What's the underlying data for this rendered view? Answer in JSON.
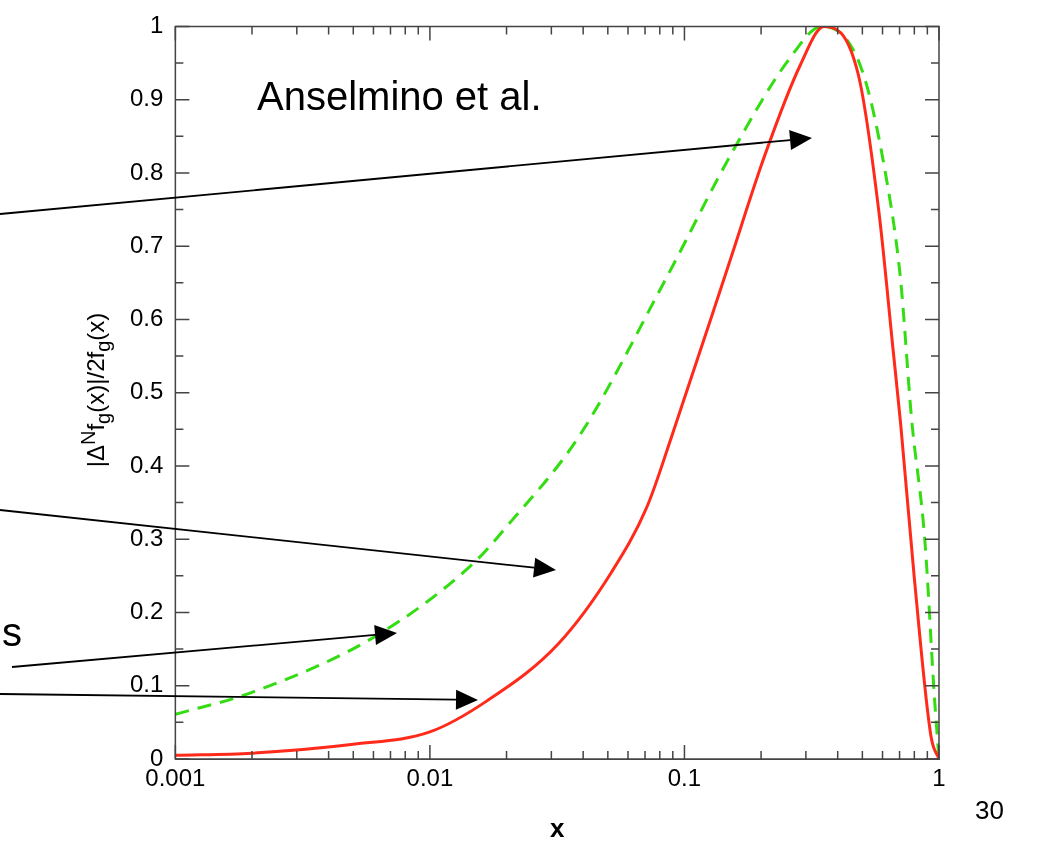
{
  "chart_data": {
    "type": "line",
    "xlabel": "x",
    "ylabel": "|Δ$^{N}$f$_{g}$(x)|/2f$_{g}$(x)",
    "annotations": [
      "Anselmino et al.",
      "s",
      "30"
    ],
    "log": "x",
    "grid": false,
    "legend": false,
    "marker": "none",
    "xlim": [
      0.001,
      1
    ],
    "xticks": [
      0.001,
      {
        "value": 0.002,
        "label": null
      },
      {
        "value": 0.003,
        "label": null
      },
      {
        "value": 0.004,
        "label": null
      },
      {
        "value": 0.005,
        "label": null
      },
      {
        "value": 0.006,
        "label": null
      },
      {
        "value": 0.007,
        "label": null
      },
      {
        "value": 0.008,
        "label": null
      },
      {
        "value": 0.009,
        "label": null
      },
      0.01,
      {
        "value": 0.02,
        "label": null
      },
      {
        "value": 0.03,
        "label": null
      },
      {
        "value": 0.04,
        "label": null
      },
      {
        "value": 0.05,
        "label": null
      },
      {
        "value": 0.06,
        "label": null
      },
      {
        "value": 0.07,
        "label": null
      },
      {
        "value": 0.08,
        "label": null
      },
      {
        "value": 0.09,
        "label": null
      },
      0.1,
      {
        "value": 0.2,
        "label": null
      },
      {
        "value": 0.3,
        "label": null
      },
      {
        "value": 0.4,
        "label": null
      },
      {
        "value": 0.5,
        "label": null
      },
      {
        "value": 0.6,
        "label": null
      },
      {
        "value": 0.7,
        "label": null
      },
      {
        "value": 0.8,
        "label": null
      },
      {
        "value": 0.9,
        "label": null
      },
      1
    ],
    "ylim": [
      0,
      1
    ],
    "yticks": [
      0,
      {
        "value": 0.05,
        "label": null
      },
      0.1,
      {
        "value": 0.15,
        "label": null
      },
      0.2,
      {
        "value": 0.25,
        "label": null
      },
      0.3,
      {
        "value": 0.35,
        "label": null
      },
      0.4,
      {
        "value": 0.45,
        "label": null
      },
      0.5,
      {
        "value": 0.55,
        "label": null
      },
      0.6,
      {
        "value": 0.65,
        "label": null
      },
      0.7,
      {
        "value": 0.75,
        "label": null
      },
      0.8,
      {
        "value": 0.85,
        "label": null
      },
      0.9,
      {
        "value": 0.95,
        "label": null
      },
      1
    ],
    "series": [
      {
        "color": "#ff2a1a",
        "line_style": "solid",
        "x": [
          0.001,
          0.002,
          0.005,
          0.01,
          0.0167,
          0.0319,
          0.0519,
          0.0714,
          0.0894,
          0.1496,
          0.2078,
          0.285,
          0.354,
          0.482,
          0.581,
          0.66,
          0.707,
          0.8,
          0.93,
          1
        ],
        "values": [
          0.005,
          0.008,
          0.02,
          0.037,
          0.079,
          0.157,
          0.256,
          0.345,
          0.442,
          0.676,
          0.826,
          0.947,
          1.0,
          0.934,
          0.746,
          0.559,
          0.457,
          0.247,
          0.031,
          0
        ]
      },
      {
        "color": "#33dd11",
        "line_style": "dashed",
        "x": [
          0.001,
          0.002,
          0.00614,
          0.0148,
          0.0201,
          0.0388,
          0.0838,
          0.155,
          0.26,
          0.347,
          0.495,
          0.62,
          0.707,
          0.78,
          0.88,
          0.96,
          1
        ],
        "values": [
          0.061,
          0.091,
          0.168,
          0.267,
          0.318,
          0.442,
          0.653,
          0.83,
          0.957,
          1.0,
          0.943,
          0.794,
          0.653,
          0.465,
          0.298,
          0.083,
          0
        ]
      }
    ]
  }
}
